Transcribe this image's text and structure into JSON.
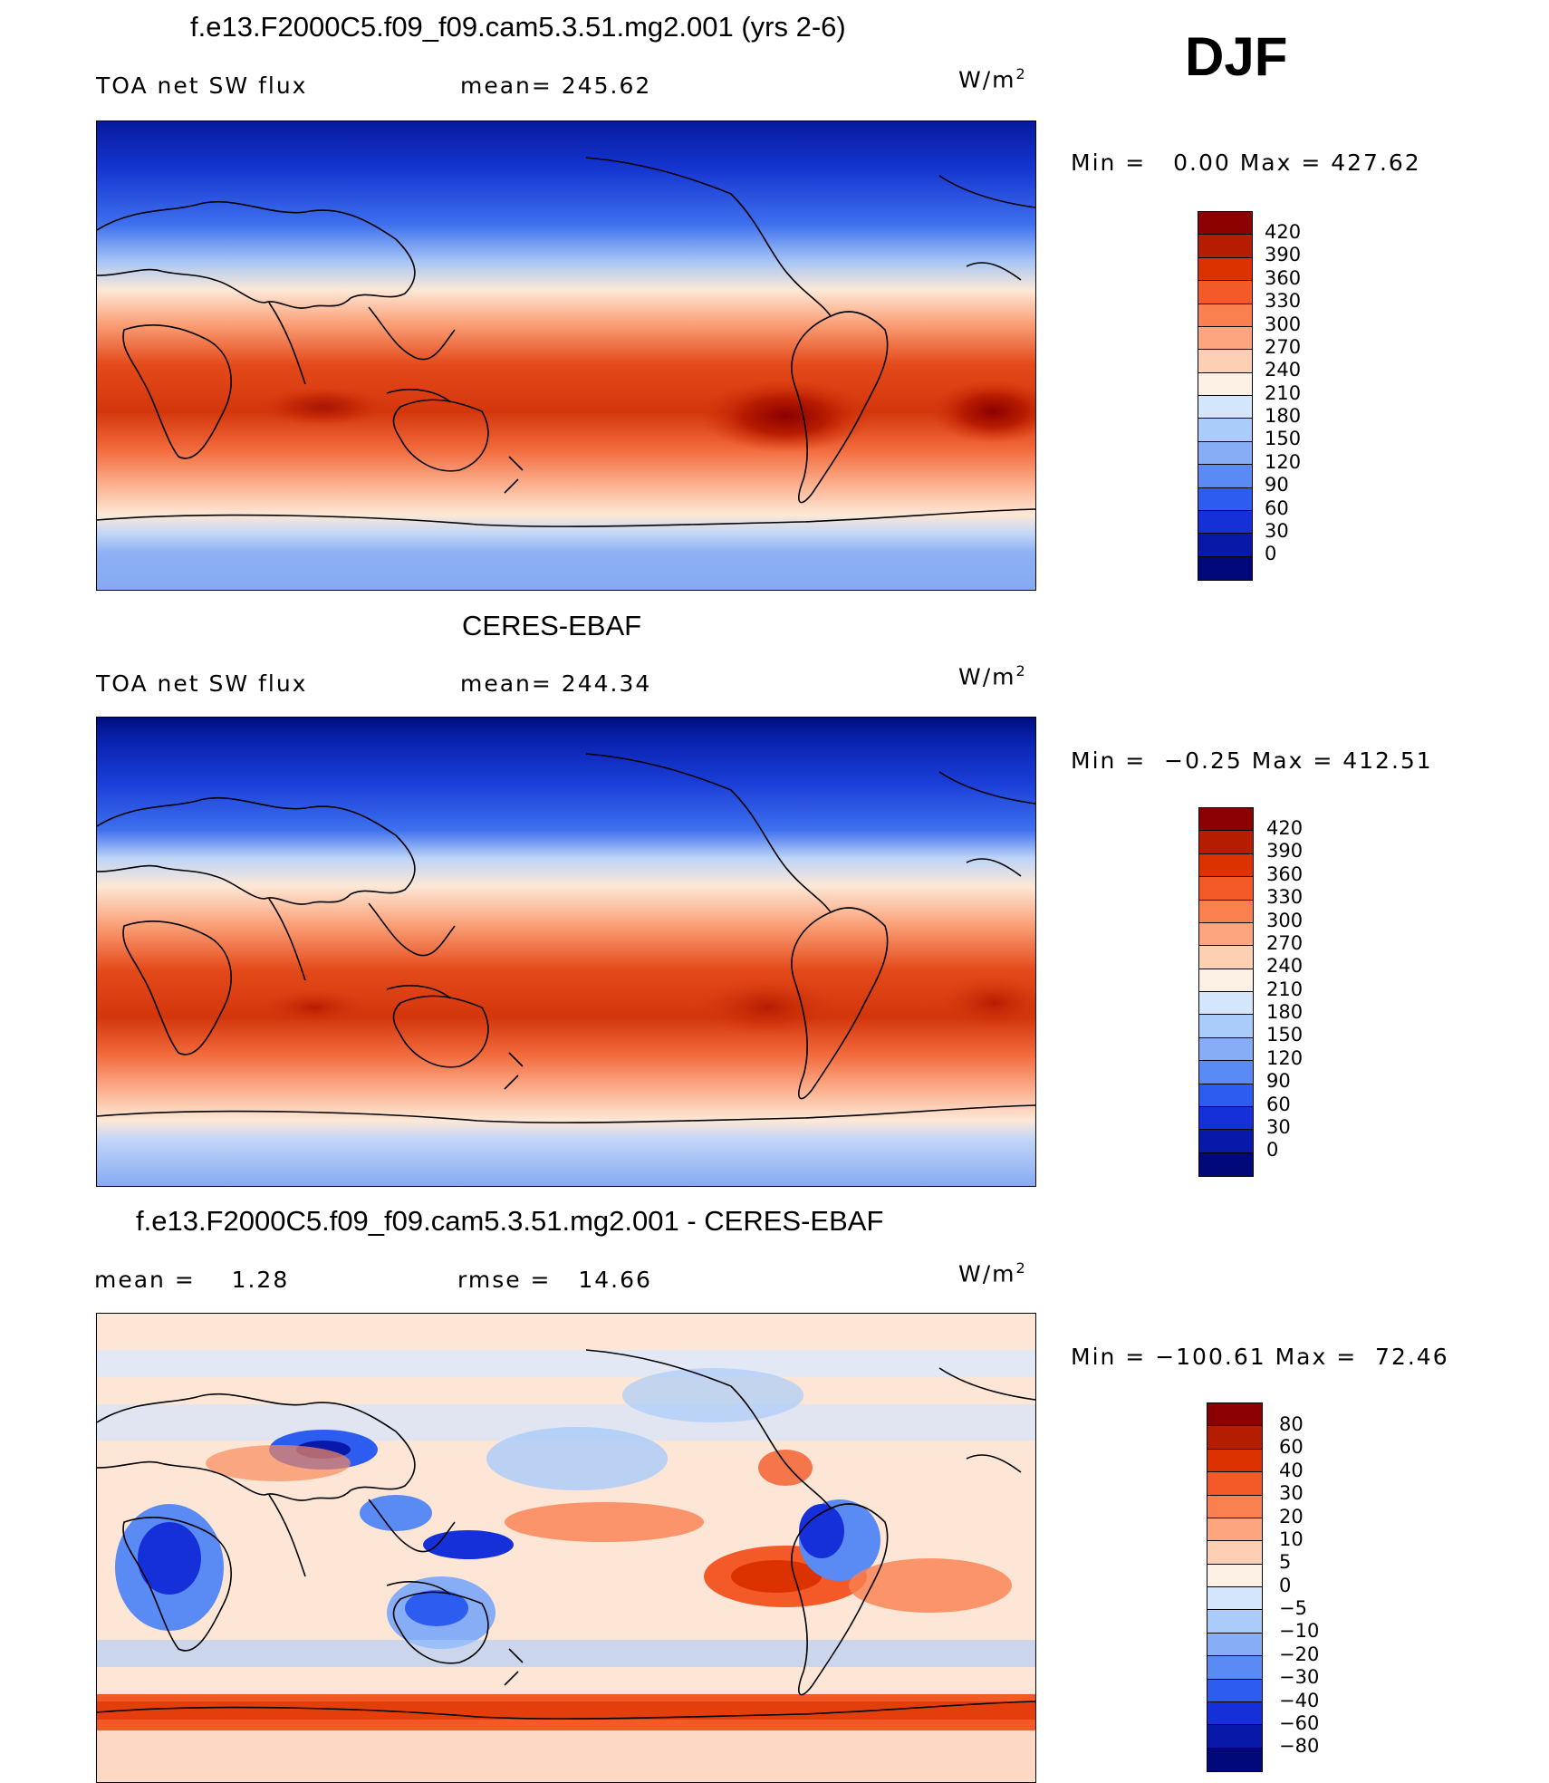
{
  "season": "DJF",
  "unit_base": "W/m",
  "unit_exp": "2",
  "panels": [
    {
      "title": "f.e13.F2000C5.f09_f09.cam5.3.51.mg2.001 (yrs 2-6)",
      "left_label": "TOA net SW flux",
      "mid_label": "mean= 245.62",
      "range_text": "Min =   0.00 Max = 427.62",
      "colorbar_labels": [
        "420",
        "390",
        "360",
        "330",
        "300",
        "270",
        "240",
        "210",
        "180",
        "150",
        "120",
        "90",
        "60",
        "30",
        "0"
      ],
      "colorbar_colors": [
        "#8b0000",
        "#b51c00",
        "#dc3200",
        "#f45a28",
        "#fa8050",
        "#fca57e",
        "#fdd0b4",
        "#fdf0e4",
        "#d4e6fc",
        "#aaccfa",
        "#86adf6",
        "#5a8af4",
        "#2d5df0",
        "#1530d8",
        "#0818a8",
        "#00087a"
      ]
    },
    {
      "title": "CERES-EBAF",
      "left_label": "TOA net SW flux",
      "mid_label": "mean= 244.34",
      "range_text": "Min =  −0.25 Max = 412.51",
      "colorbar_labels": [
        "420",
        "390",
        "360",
        "330",
        "300",
        "270",
        "240",
        "210",
        "180",
        "150",
        "120",
        "90",
        "60",
        "30",
        "0"
      ],
      "colorbar_colors": [
        "#8b0000",
        "#b51c00",
        "#dc3200",
        "#f45a28",
        "#fa8050",
        "#fca57e",
        "#fdd0b4",
        "#fdf0e4",
        "#d4e6fc",
        "#aaccfa",
        "#86adf6",
        "#5a8af4",
        "#2d5df0",
        "#1530d8",
        "#0818a8",
        "#00087a"
      ]
    },
    {
      "title": "f.e13.F2000C5.f09_f09.cam5.3.51.mg2.001 - CERES-EBAF",
      "left_label": "mean =    1.28",
      "mid_label": "rmse =   14.66",
      "range_text": "Min = −100.61 Max =  72.46",
      "colorbar_labels": [
        "80",
        "60",
        "40",
        "30",
        "20",
        "10",
        "5",
        "0",
        "−5",
        "−10",
        "−20",
        "−30",
        "−40",
        "−60",
        "−80"
      ],
      "colorbar_colors": [
        "#8b0000",
        "#b51c00",
        "#dc3200",
        "#f45a28",
        "#fa8050",
        "#fca57e",
        "#fdd0b4",
        "#fdf0e4",
        "#d4e6fc",
        "#aaccfa",
        "#86adf6",
        "#5a8af4",
        "#2d5df0",
        "#1530d8",
        "#0818a8",
        "#00087a"
      ]
    }
  ]
}
